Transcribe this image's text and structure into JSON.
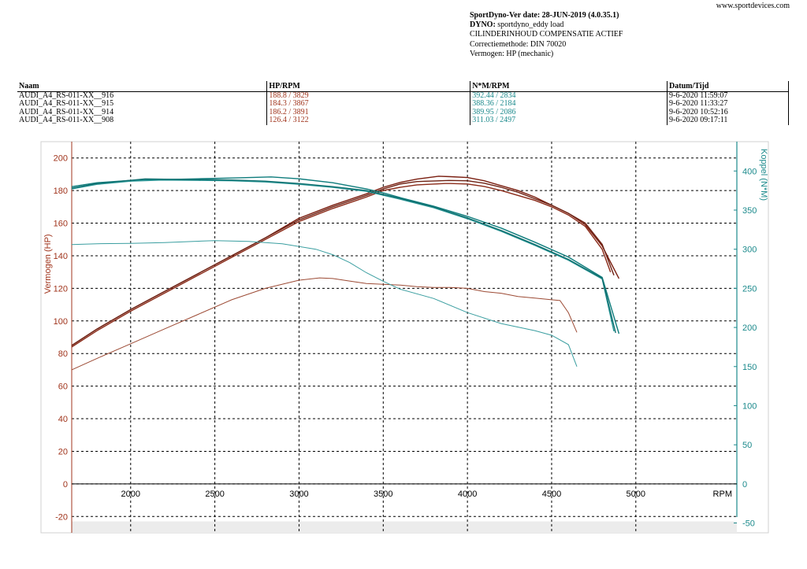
{
  "site": "www.sportdevices.com",
  "header": {
    "version": "SportDyno-Ver date: 28-JUN-2019 (4.0.35.1)",
    "dyno_label": "DYNO:",
    "dyno_value": "sportdyno_eddy load",
    "line3": "CILINDERINHOUD COMPENSATIE ACTIEF",
    "line4": "Correctiemethode: DIN 70020",
    "line5": "Vermogen: HP (mechanic)"
  },
  "table": {
    "headers": [
      "Naam",
      "HP/RPM",
      "N*M/RPM",
      "Datum/Tijd"
    ],
    "rows": [
      [
        "AUDI_A4_RS-011-XX__916",
        "188.8 / 3829",
        "392.44 / 2834",
        "9-6-2020 11:59:07"
      ],
      [
        "AUDI_A4_RS-011-XX__915",
        "184.3 / 3867",
        "388.36 / 2184",
        "9-6-2020 11:33:27"
      ],
      [
        "AUDI_A4_RS-011-XX__914",
        "186.2 / 3891",
        "389.95 / 2086",
        "9-6-2020 10:52:16"
      ],
      [
        "AUDI_A4_RS-011-XX__908",
        "126.4 / 3122",
        "311.03 / 2497",
        "9-6-2020 09:17:11"
      ]
    ]
  },
  "colors": {
    "power_axis": "#a0341c",
    "torque_axis": "#1c8a8c",
    "power_runs": [
      "#7a1e10",
      "#8a2a18",
      "#6e2214",
      "#9c4a34"
    ],
    "torque_runs": [
      "#0e7c7c",
      "#2a9696",
      "#107070",
      "#3a9ea0"
    ]
  },
  "chart_data": {
    "type": "line",
    "xlabel": "RPM",
    "y1label": "Vermogen (HP)",
    "y2label": "Koppel (N*M)",
    "xlim": [
      1650,
      5600
    ],
    "y1lim": [
      -30,
      210
    ],
    "y2lim": [
      -62.5,
      437.5
    ],
    "xticks": [
      2000,
      2500,
      3000,
      3500,
      4000,
      4500,
      5000
    ],
    "y1ticks": [
      -20,
      0,
      20,
      40,
      60,
      80,
      100,
      120,
      140,
      160,
      180,
      200
    ],
    "y2ticks": [
      -50,
      0,
      50,
      100,
      150,
      200,
      250,
      300,
      350,
      400
    ],
    "grid": true,
    "power_series": [
      {
        "name": "AUDI_A4_RS-011-XX__916",
        "x": [
          1650,
          1800,
          2000,
          2200,
          2400,
          2600,
          2800,
          3000,
          3200,
          3400,
          3500,
          3600,
          3700,
          3829,
          3900,
          4000,
          4100,
          4200,
          4300,
          4400,
          4500,
          4600,
          4700,
          4800,
          4900
        ],
        "y": [
          85,
          95,
          107,
          118,
          129,
          140,
          151,
          163,
          171,
          178,
          182,
          185,
          187,
          188.8,
          188.5,
          188,
          186,
          183,
          180,
          176,
          171,
          166,
          159,
          146,
          126
        ]
      },
      {
        "name": "AUDI_A4_RS-011-XX__915",
        "x": [
          1650,
          1800,
          2000,
          2200,
          2400,
          2600,
          2800,
          3000,
          3200,
          3400,
          3500,
          3600,
          3700,
          3867,
          3900,
          4000,
          4100,
          4200,
          4300,
          4400,
          4500,
          4600,
          4700,
          4800,
          4850
        ],
        "y": [
          84,
          94,
          106,
          117,
          128,
          139,
          150,
          161,
          169,
          176,
          180,
          182,
          183.5,
          184.3,
          184.3,
          184,
          182.5,
          180,
          177,
          174,
          170,
          165,
          158,
          144,
          130
        ]
      },
      {
        "name": "AUDI_A4_RS-011-XX__914",
        "x": [
          1650,
          1800,
          2000,
          2200,
          2400,
          2600,
          2800,
          3000,
          3200,
          3400,
          3500,
          3600,
          3700,
          3891,
          4000,
          4100,
          4200,
          4300,
          4400,
          4500,
          4600,
          4700,
          4800,
          4870
        ],
        "y": [
          85,
          95,
          107,
          118,
          129,
          140,
          151,
          162,
          170,
          177,
          181,
          184,
          185.5,
          186.2,
          186,
          184.5,
          182,
          179,
          175,
          171,
          166,
          160,
          147,
          128
        ]
      },
      {
        "name": "AUDI_A4_RS-011-XX__908",
        "x": [
          1650,
          1800,
          2000,
          2200,
          2400,
          2600,
          2800,
          3000,
          3122,
          3200,
          3300,
          3400,
          3500,
          3600,
          3700,
          3800,
          3900,
          4000,
          4100,
          4200,
          4300,
          4400,
          4500,
          4550,
          4600,
          4650
        ],
        "y": [
          70,
          77,
          86,
          95,
          104,
          113,
          120,
          125,
          126.4,
          126,
          124.5,
          123,
          122.5,
          122,
          121,
          120.5,
          120.5,
          120,
          118,
          117,
          115,
          114,
          113,
          112.5,
          105,
          93
        ]
      }
    ],
    "torque_series": [
      {
        "name": "AUDI_A4_RS-011-XX__916",
        "x": [
          1650,
          1800,
          2000,
          2200,
          2400,
          2600,
          2834,
          3000,
          3200,
          3400,
          3500,
          3600,
          3800,
          4000,
          4200,
          4400,
          4600,
          4800,
          4900
        ],
        "y": [
          380,
          385,
          388,
          389,
          390,
          391,
          392.44,
          390,
          385,
          377,
          372,
          366,
          355,
          342,
          327,
          309,
          290,
          264,
          192
        ]
      },
      {
        "name": "AUDI_A4_RS-011-XX__915",
        "x": [
          1650,
          1800,
          2000,
          2184,
          2400,
          2600,
          2800,
          3000,
          3200,
          3400,
          3500,
          3600,
          3800,
          4000,
          4200,
          4400,
          4600,
          4800,
          4870
        ],
        "y": [
          377,
          383,
          387,
          388.36,
          388,
          387.5,
          386,
          383,
          379,
          374,
          369,
          364,
          353,
          339,
          323,
          305,
          286,
          262,
          195
        ]
      },
      {
        "name": "AUDI_A4_RS-011-XX__914",
        "x": [
          1650,
          1800,
          2086,
          2200,
          2400,
          2600,
          2800,
          3000,
          3200,
          3400,
          3500,
          3600,
          3800,
          4000,
          4200,
          4400,
          4600,
          4800,
          4880
        ],
        "y": [
          378,
          384,
          389.95,
          389.5,
          389,
          388.5,
          387,
          384,
          380,
          375,
          370,
          365,
          354,
          340,
          324,
          306,
          287,
          263,
          193
        ]
      },
      {
        "name": "AUDI_A4_RS-011-XX__908",
        "x": [
          1650,
          1800,
          2000,
          2200,
          2497,
          2700,
          2900,
          3100,
          3200,
          3300,
          3400,
          3500,
          3600,
          3800,
          4000,
          4200,
          4400,
          4500,
          4600,
          4650
        ],
        "y": [
          306,
          307,
          307.5,
          308.5,
          311.03,
          310,
          307,
          300,
          293,
          283,
          270,
          259,
          249,
          237,
          219,
          205,
          196,
          190,
          178,
          150
        ]
      }
    ]
  }
}
